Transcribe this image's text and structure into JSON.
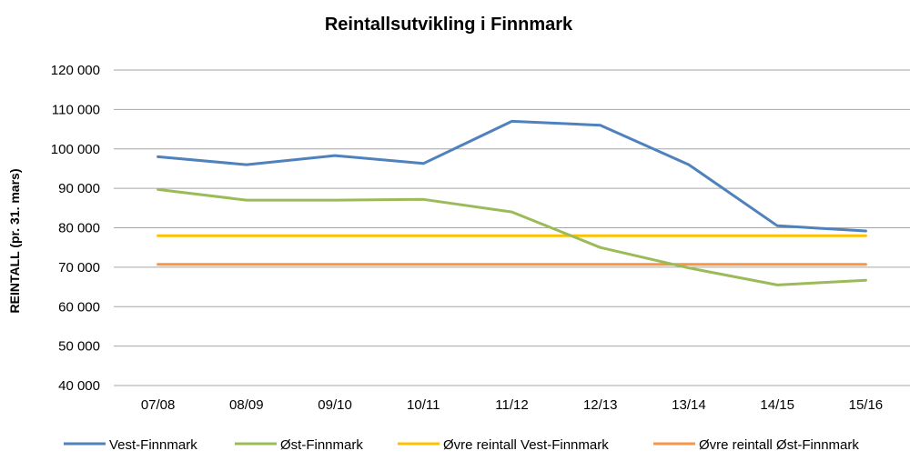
{
  "chart_data": {
    "type": "line",
    "title": "Reintallsutvikling i Finnmark",
    "xlabel": "",
    "ylabel": "REINTALL (pr. 31. mars)",
    "categories": [
      "07/08",
      "08/09",
      "09/10",
      "10/11",
      "11/12",
      "12/13",
      "13/14",
      "14/15",
      "15/16"
    ],
    "ylim": [
      40000,
      120000
    ],
    "yticks": [
      40000,
      50000,
      60000,
      70000,
      80000,
      90000,
      100000,
      110000,
      120000
    ],
    "ytick_labels": [
      "40 000",
      "50 000",
      "60 000",
      "70 000",
      "80 000",
      "90 000",
      "100 000",
      "110 000",
      "120 000"
    ],
    "grid": true,
    "legend_position": "bottom",
    "series": [
      {
        "name": "Vest-Finnmark",
        "color": "#4F81BD",
        "values": [
          98000,
          96000,
          98300,
          96300,
          107000,
          106000,
          96000,
          80500,
          79200
        ]
      },
      {
        "name": "Øst-Finnmark",
        "color": "#9BBB59",
        "values": [
          89700,
          87000,
          87000,
          87200,
          84000,
          75000,
          69800,
          65500,
          66700
        ]
      },
      {
        "name": "Øvre reintall Vest-Finnmark",
        "color": "#FFC000",
        "values": [
          78000,
          78000,
          78000,
          78000,
          78000,
          78000,
          78000,
          78000,
          78000
        ]
      },
      {
        "name": "Øvre reintall Øst-Finnmark",
        "color": "#F79646",
        "values": [
          70700,
          70700,
          70700,
          70700,
          70700,
          70700,
          70700,
          70700,
          70700
        ]
      }
    ]
  }
}
